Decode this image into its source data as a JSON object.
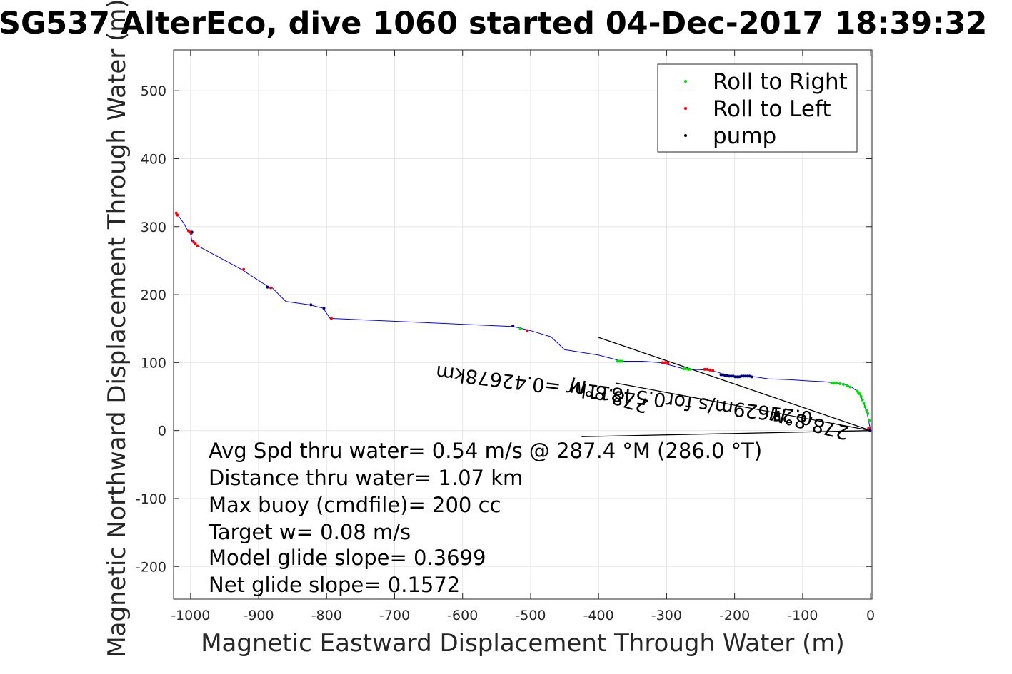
{
  "chart_data": {
    "type": "line",
    "title": "SG537 AlterEco, dive 1060 started 04-Dec-2017 18:39:32",
    "xlabel": "Magnetic Eastward Displacement Through Water (m)",
    "ylabel": "Magnetic Northward Displacement Through Water (m)",
    "xlim": [
      -1025,
      2
    ],
    "ylim": [
      -248,
      560
    ],
    "xticks": [
      -1000,
      -900,
      -800,
      -700,
      -600,
      -500,
      -400,
      -300,
      -200,
      -100,
      0
    ],
    "yticks": [
      -200,
      -100,
      0,
      100,
      200,
      300,
      400,
      500
    ],
    "grid": true,
    "legend_position": "top-right",
    "colors": {
      "track": "#0000ff",
      "roll_right": "#00dd00",
      "roll_left": "#ff0000",
      "pump": "#000080",
      "overlay": "#000000"
    },
    "series": [
      {
        "name": "track",
        "x": [
          0,
          -2,
          -5,
          -10,
          -14,
          -20,
          -28,
          -38,
          -50,
          -60,
          -70,
          -90,
          -120,
          -150,
          -170,
          -180,
          -190,
          -200,
          -210,
          -215,
          -225,
          -240,
          -260,
          -275,
          -290,
          -310,
          -335,
          -350,
          -365,
          -400,
          -450,
          -470,
          -500,
          -525,
          -795,
          -805,
          -825,
          -860,
          -880,
          -885,
          -925,
          -990,
          -995,
          -998,
          -1000,
          -1005,
          -1010,
          -1018,
          -1022
        ],
        "y": [
          0,
          10,
          25,
          40,
          50,
          58,
          64,
          68,
          70,
          71,
          72,
          73,
          75,
          76,
          79,
          80,
          80,
          80,
          80,
          82,
          86,
          89,
          90,
          91,
          95,
          100,
          102,
          102,
          102,
          111,
          119,
          138,
          147,
          153,
          165,
          180,
          185,
          190,
          210,
          211,
          237,
          272,
          275,
          278,
          292,
          296,
          305,
          316,
          320
        ]
      },
      {
        "name": "Roll to Right",
        "x": [
          -2,
          -4,
          -6,
          -8,
          -10,
          -12,
          -14,
          -16,
          -18,
          -20,
          -30,
          -35,
          -40,
          -45,
          -50,
          -52,
          -55,
          -57,
          -265,
          -268,
          -272,
          -275,
          -365,
          -368,
          -370,
          -372,
          -515
        ],
        "y": [
          15,
          25,
          30,
          35,
          40,
          45,
          50,
          54,
          56,
          58,
          64,
          66,
          68,
          69,
          70,
          70,
          70,
          70,
          90,
          90,
          91,
          91,
          102,
          102,
          102,
          102,
          150
        ]
      },
      {
        "name": "Roll to Left",
        "x": [
          -1,
          -3,
          -232,
          -236,
          -240,
          -244,
          -298,
          -302,
          -306,
          -505,
          -793,
          -882,
          -887,
          -922,
          -990,
          -993,
          -996,
          -999,
          -1001,
          -1003,
          -1019,
          -1021
        ],
        "y": [
          1,
          3,
          88,
          89,
          90,
          90,
          99,
          100,
          100,
          147,
          165,
          210,
          211,
          237,
          272,
          275,
          278,
          290,
          292,
          294,
          317,
          320
        ]
      },
      {
        "name": "pump",
        "x": [
          -175,
          -178,
          -181,
          -184,
          -187,
          -190,
          -193,
          -196,
          -199,
          -202,
          -205,
          -208,
          -211,
          -214,
          -217,
          -220,
          -1,
          -138,
          -804,
          -823,
          -526,
          -887,
          -998
        ],
        "y": [
          79,
          80,
          80,
          80,
          80,
          80,
          79,
          79,
          79,
          80,
          80,
          80,
          81,
          81,
          82,
          82,
          0,
          24,
          180,
          185,
          154,
          211,
          292
        ]
      }
    ],
    "overlay_lines": [
      {
        "x": [
          -400,
          0
        ],
        "y": [
          137,
          0
        ]
      },
      {
        "x": [
          -425,
          0
        ],
        "y": [
          -9,
          0
        ]
      },
      {
        "x": [
          -375,
          0
        ],
        "y": [
          70,
          0
        ]
      }
    ],
    "legend": [
      "Roll to Right",
      "Roll to Left",
      "pump"
    ],
    "annotations": [
      "Avg Spd thru water=  0.54 m/s @ 287.4 °M (286.0 °T)",
      "Distance thru water=  1.07 km",
      "Max buoy (cmdfile)= 200 cc",
      "Target w= 0.08 m/s",
      "Model glide slope= 0.3699",
      "Net glide slope= 0.1572"
    ],
    "rotated_annotations": [
      "278.8°M",
      "0.21629m/s for0.54811hr =0.42678km",
      "278.8°M"
    ]
  }
}
